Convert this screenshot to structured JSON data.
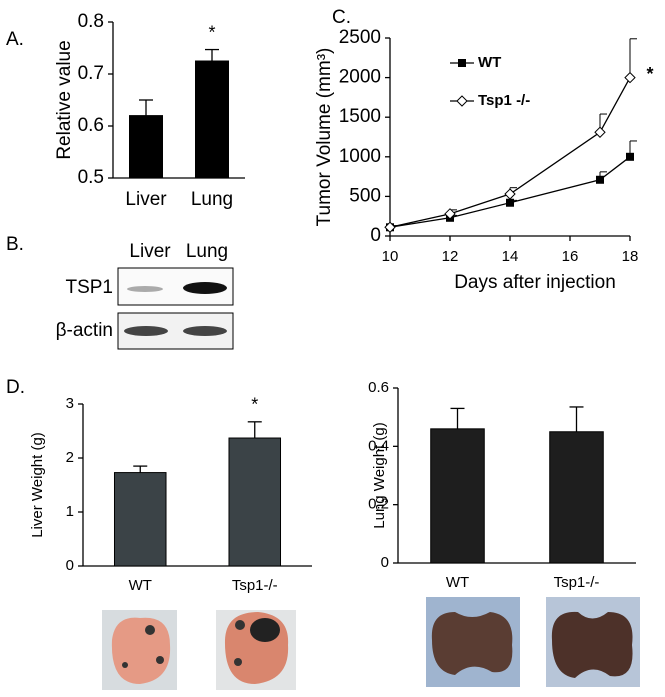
{
  "panel_labels": [
    "A.",
    "B.",
    "C.",
    "D."
  ],
  "blot": {
    "columns": [
      "Liver",
      "Lung"
    ],
    "rows": [
      "TSP1",
      "β-actin"
    ]
  },
  "chart_data": [
    {
      "type": "bar",
      "ylabel": "Relative value",
      "categories": [
        "Liver",
        "Lung"
      ],
      "values": [
        0.62,
        0.725
      ],
      "errors": [
        0.03,
        0.022
      ],
      "color": "#000000",
      "ylim": [
        0.5,
        0.8
      ],
      "yticks": [
        0.5,
        0.6,
        0.7,
        0.8
      ],
      "annotation": "*"
    },
    {
      "type": "line",
      "ylabel": "Tumor Volume (mm³)",
      "xlabel": "Days after injection",
      "x": [
        10,
        12,
        14,
        17,
        18
      ],
      "series": [
        {
          "name": "WT",
          "color": "#000000",
          "marker": "square",
          "values": [
            110,
            230,
            420,
            710,
            1000
          ],
          "errors": [
            20,
            30,
            30,
            100,
            200
          ]
        },
        {
          "name": "Tsp1 -/-",
          "color": "#000000",
          "marker": "diamond",
          "values": [
            110,
            280,
            530,
            1310,
            2000
          ],
          "errors": [
            20,
            50,
            80,
            230,
            490
          ]
        }
      ],
      "xlim": [
        10,
        18
      ],
      "xticks": [
        10,
        12,
        14,
        16,
        18
      ],
      "ylim": [
        0,
        2500
      ],
      "yticks": [
        0,
        500,
        1000,
        1500,
        2000,
        2500
      ],
      "annotation": "*"
    },
    {
      "type": "bar",
      "ylabel": "Liver Weight (g)",
      "categories": [
        "WT",
        "Tsp1-/-"
      ],
      "values": [
        1.73,
        2.37
      ],
      "errors": [
        0.12,
        0.3
      ],
      "color": "#3b4347",
      "ylim": [
        0,
        3
      ],
      "yticks": [
        0,
        1,
        2,
        3
      ],
      "annotation": "*"
    },
    {
      "type": "bar",
      "ylabel": "Lung Weight (g)",
      "categories": [
        "WT",
        "Tsp1-/-"
      ],
      "values": [
        0.46,
        0.45
      ],
      "errors": [
        0.07,
        0.085
      ],
      "color": "#1e1e1e",
      "ylim": [
        0,
        0.6
      ],
      "yticks": [
        0,
        0.2,
        0.4,
        0.6
      ]
    }
  ]
}
